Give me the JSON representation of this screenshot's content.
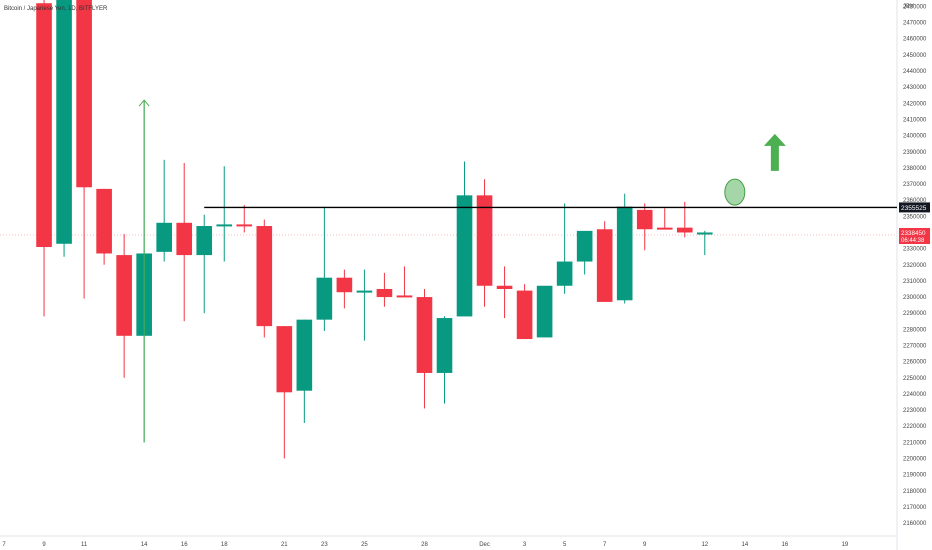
{
  "chart_data": {
    "type": "candlestick",
    "title": "Bitcoin / Japanese Yen, 1D, BITFLYER",
    "currency_label": "JPY",
    "y_ticks": [
      2160000,
      2170000,
      2180000,
      2190000,
      2200000,
      2210000,
      2220000,
      2230000,
      2240000,
      2250000,
      2260000,
      2270000,
      2280000,
      2290000,
      2300000,
      2310000,
      2320000,
      2330000,
      2340000,
      2350000,
      2360000,
      2370000,
      2380000,
      2390000,
      2400000,
      2410000,
      2420000,
      2430000,
      2440000,
      2450000,
      2460000,
      2470000,
      2480000
    ],
    "ylim": [
      2152000,
      2484000
    ],
    "x_ticks": [
      {
        "label": "7",
        "i": 0
      },
      {
        "label": "9",
        "i": 2
      },
      {
        "label": "11",
        "i": 4
      },
      {
        "label": "14",
        "i": 7
      },
      {
        "label": "16",
        "i": 9
      },
      {
        "label": "18",
        "i": 11
      },
      {
        "label": "21",
        "i": 14
      },
      {
        "label": "23",
        "i": 16
      },
      {
        "label": "25",
        "i": 18
      },
      {
        "label": "28",
        "i": 21
      },
      {
        "label": "Dec",
        "i": 24
      },
      {
        "label": "3",
        "i": 26
      },
      {
        "label": "5",
        "i": 28
      },
      {
        "label": "7",
        "i": 30
      },
      {
        "label": "9",
        "i": 32
      },
      {
        "label": "12",
        "i": 35
      },
      {
        "label": "14",
        "i": 37
      },
      {
        "label": "16",
        "i": 39
      },
      {
        "label": "19",
        "i": 42
      }
    ],
    "x_index_range": [
      -0.2,
      44.6
    ],
    "candles": [
      {
        "i": 2,
        "o": 2482000,
        "h": 2484000,
        "l": 2288000,
        "c": 2331000
      },
      {
        "i": 3,
        "o": 2333000,
        "h": 2484000,
        "l": 2325000,
        "c": 2484000
      },
      {
        "i": 4,
        "o": 2484000,
        "h": 2484000,
        "l": 2299000,
        "c": 2368000
      },
      {
        "i": 5,
        "o": 2367000,
        "h": 2367000,
        "l": 2320000,
        "c": 2327000
      },
      {
        "i": 6,
        "o": 2326000,
        "h": 2339000,
        "l": 2250000,
        "c": 2276000
      },
      {
        "i": 7,
        "o": 2276000,
        "h": 2422000,
        "l": 2210000,
        "c": 2327000
      },
      {
        "i": 8,
        "o": 2328000,
        "h": 2385000,
        "l": 2322000,
        "c": 2346000
      },
      {
        "i": 9,
        "o": 2346000,
        "h": 2383000,
        "l": 2285000,
        "c": 2326000
      },
      {
        "i": 10,
        "o": 2326000,
        "h": 2351000,
        "l": 2290000,
        "c": 2344000
      },
      {
        "i": 11,
        "o": 2344000,
        "h": 2381000,
        "l": 2322000,
        "c": 2345000
      },
      {
        "i": 12,
        "o": 2345000,
        "h": 2357000,
        "l": 2340000,
        "c": 2344000
      },
      {
        "i": 13,
        "o": 2344000,
        "h": 2348000,
        "l": 2275000,
        "c": 2282000
      },
      {
        "i": 14,
        "o": 2282000,
        "h": 2282000,
        "l": 2200000,
        "c": 2241000
      },
      {
        "i": 15,
        "o": 2242000,
        "h": 2286000,
        "l": 2222000,
        "c": 2286000
      },
      {
        "i": 16,
        "o": 2286000,
        "h": 2356000,
        "l": 2279000,
        "c": 2312000
      },
      {
        "i": 17,
        "o": 2312000,
        "h": 2317000,
        "l": 2293000,
        "c": 2303000
      },
      {
        "i": 18,
        "o": 2303000,
        "h": 2317000,
        "l": 2273000,
        "c": 2304000
      },
      {
        "i": 19,
        "o": 2305000,
        "h": 2315000,
        "l": 2294000,
        "c": 2300000
      },
      {
        "i": 20,
        "o": 2301000,
        "h": 2319000,
        "l": 2300000,
        "c": 2300000
      },
      {
        "i": 21,
        "o": 2300000,
        "h": 2305000,
        "l": 2231000,
        "c": 2253000
      },
      {
        "i": 22,
        "o": 2253000,
        "h": 2288000,
        "l": 2234000,
        "c": 2287000
      },
      {
        "i": 23,
        "o": 2288000,
        "h": 2384000,
        "l": 2288000,
        "c": 2363000
      },
      {
        "i": 24,
        "o": 2363000,
        "h": 2373000,
        "l": 2294000,
        "c": 2307000
      },
      {
        "i": 25,
        "o": 2307000,
        "h": 2319000,
        "l": 2287000,
        "c": 2305000
      },
      {
        "i": 26,
        "o": 2304000,
        "h": 2308000,
        "l": 2274000,
        "c": 2274000
      },
      {
        "i": 27,
        "o": 2275000,
        "h": 2306000,
        "l": 2275000,
        "c": 2307000
      },
      {
        "i": 28,
        "o": 2307000,
        "h": 2358000,
        "l": 2302000,
        "c": 2322000
      },
      {
        "i": 29,
        "o": 2322000,
        "h": 2340000,
        "l": 2314000,
        "c": 2341000
      },
      {
        "i": 30,
        "o": 2342000,
        "h": 2347000,
        "l": 2297000,
        "c": 2297000
      },
      {
        "i": 31,
        "o": 2298000,
        "h": 2364000,
        "l": 2296000,
        "c": 2356000
      },
      {
        "i": 32,
        "o": 2354000,
        "h": 2358000,
        "l": 2329000,
        "c": 2342000
      },
      {
        "i": 33,
        "o": 2343000,
        "h": 2355000,
        "l": 2342000,
        "c": 2342000
      },
      {
        "i": 34,
        "o": 2343000,
        "h": 2359000,
        "l": 2337000,
        "c": 2340000
      },
      {
        "i": 35,
        "o": 2340000,
        "h": 2341000,
        "l": 2326000,
        "c": 2340000
      }
    ],
    "horizontal_line": {
      "value": 2355525,
      "label": "2355525",
      "from_i": 10
    },
    "last_price_label": "2338450",
    "countdown_label": "06:44:38",
    "last_price_value": 2338450,
    "annotations": [
      {
        "type": "long-arrow",
        "i": 7,
        "from": 2210000,
        "to": 2422000
      },
      {
        "type": "circle",
        "i": 36.5,
        "value": 2365000
      },
      {
        "type": "up-arrow",
        "i": 38.5,
        "value": 2393000
      }
    ],
    "colors": {
      "up": "#089981",
      "down": "#f23645",
      "line": "#000000",
      "arrow": "#4caf50",
      "circle": "#a5d6a7",
      "circle_stroke": "#43a047"
    }
  }
}
